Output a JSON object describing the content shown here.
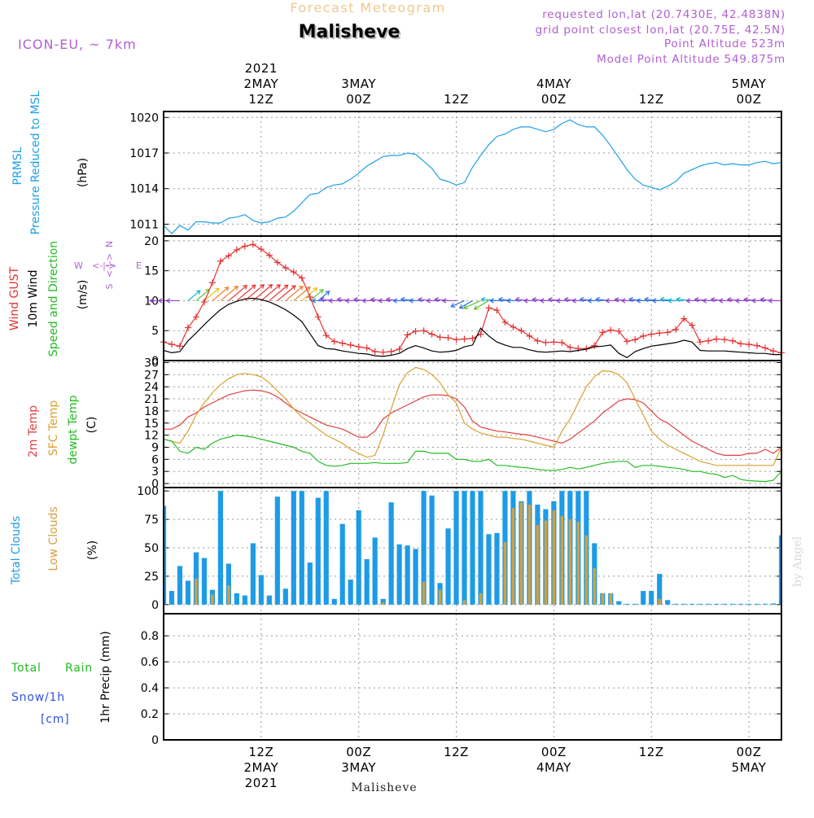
{
  "header": {
    "product_title": "Forecast Meteogram",
    "location": "Malisheve",
    "model": "ICON-EU, ~ 7km",
    "requested": "requested lon,lat (20.7430E, 42.4838N)",
    "grid_point": "grid point closest lon,lat (20.75E, 42.5N)",
    "point_altitude": "Point Altitude 523m",
    "model_altitude": "Model Point Altitude 549.875m",
    "footer_location": "Malisheve",
    "watermark": "by Angel"
  },
  "colors": {
    "pressure": "#1ea0e6",
    "gust": "#e63232",
    "wind": "#000000",
    "wind_dir_label": "#22bb22",
    "temp2m": "#e04040",
    "sfc": "#d9a030",
    "dewpt": "#22bb22",
    "total_clouds": "#1e9be6",
    "low_clouds": "#d4a040",
    "rain": "#22bb22",
    "snow": "#3050e0",
    "purple": "#b060d0"
  },
  "top_axis": [
    {
      "lines": [
        "2021",
        "2MAY",
        "12Z"
      ],
      "x_hours": 12
    },
    {
      "lines": [
        "3MAY",
        "00Z"
      ],
      "x_hours": 24
    },
    {
      "lines": [
        "12Z"
      ],
      "x_hours": 36
    },
    {
      "lines": [
        "4MAY",
        "00Z"
      ],
      "x_hours": 48
    },
    {
      "lines": [
        "12Z"
      ],
      "x_hours": 60
    },
    {
      "lines": [
        "5MAY",
        "00Z"
      ],
      "x_hours": 72
    }
  ],
  "bottom_axis": [
    {
      "lines": [
        "12Z",
        "2MAY",
        "2021"
      ],
      "x_hours": 12
    },
    {
      "lines": [
        "00Z",
        "3MAY"
      ],
      "x_hours": 24
    },
    {
      "lines": [
        "12Z"
      ],
      "x_hours": 36
    },
    {
      "lines": [
        "00Z",
        "4MAY"
      ],
      "x_hours": 48
    },
    {
      "lines": [
        "12Z"
      ],
      "x_hours": 60
    },
    {
      "lines": [
        "00Z",
        "5MAY"
      ],
      "x_hours": 72
    }
  ],
  "chart_data": [
    {
      "id": "pressure",
      "type": "line",
      "ylabels": [
        "PRMSL",
        "Pressure Reduced to MSL"
      ],
      "unit": "(hPa)",
      "yticks": [
        1011,
        1014,
        1017,
        1020
      ],
      "ylim": [
        1010,
        1020.5
      ],
      "grid": true,
      "series": [
        {
          "color_key": "pressure",
          "values": [
            1010.9,
            1010.2,
            1010.9,
            1010.5,
            1011.2,
            1011.2,
            1011.1,
            1011.1,
            1011.5,
            1011.6,
            1011.8,
            1011.3,
            1011.1,
            1011.2,
            1011.5,
            1011.6,
            1012.1,
            1012.8,
            1013.5,
            1013.6,
            1014.1,
            1014.3,
            1014.4,
            1014.8,
            1015.3,
            1015.9,
            1016.3,
            1016.7,
            1016.8,
            1016.8,
            1017.0,
            1016.9,
            1016.3,
            1015.7,
            1014.8,
            1014.6,
            1014.3,
            1014.5,
            1015.8,
            1016.8,
            1017.7,
            1018.4,
            1018.6,
            1019.0,
            1019.2,
            1019.2,
            1019.0,
            1018.8,
            1019.0,
            1019.5,
            1019.8,
            1019.4,
            1019.2,
            1019.2,
            1018.5,
            1017.6,
            1016.6,
            1015.6,
            1014.8,
            1014.3,
            1014.1,
            1013.9,
            1014.2,
            1014.6,
            1015.3,
            1015.6,
            1015.9,
            1016.1,
            1016.2,
            1016.0,
            1016.1,
            1016.0,
            1016.0,
            1016.2,
            1016.3,
            1016.1,
            1016.2
          ]
        }
      ]
    },
    {
      "id": "wind",
      "type": "line",
      "ylabels": [
        "Wind GUST",
        "10m Wind",
        "Speed and Direction"
      ],
      "unit": "(m/s)",
      "compass": {
        "n": "N",
        "s": "S",
        "e": "E",
        "w": "W",
        "mark": "<-|->"
      },
      "yticks": [
        0,
        5,
        10,
        15,
        20
      ],
      "ylim": [
        0,
        20.8
      ],
      "grid": true,
      "direction_arrow_level": 10,
      "series": [
        {
          "name": "Wind GUST",
          "color_key": "gust",
          "marker": "+",
          "values": [
            3.1,
            2.7,
            2.4,
            5.5,
            7.3,
            9.8,
            13,
            16.6,
            17.5,
            18.5,
            19.1,
            19.4,
            18.6,
            17.6,
            16.4,
            15.5,
            14.8,
            13.8,
            10.6,
            7.3,
            4.2,
            3.2,
            2.9,
            2.6,
            2.3,
            2.1,
            1.5,
            1.4,
            1.5,
            1.9,
            4.3,
            4.9,
            5.0,
            4.4,
            3.9,
            3.8,
            3.5,
            3.6,
            3.7,
            4.4,
            8.8,
            8.4,
            6.4,
            5.6,
            5.0,
            4.1,
            3.3,
            3.0,
            3.1,
            3.0,
            2.2,
            2.0,
            2.0,
            2.5,
            4.7,
            5.1,
            4.9,
            3.2,
            3.5,
            4.1,
            4.4,
            4.6,
            4.7,
            5.2,
            7.0,
            5.9,
            3.1,
            3.3,
            3.6,
            3.5,
            3.3,
            2.8,
            2.7,
            2.5,
            2.1,
            1.6,
            1.3
          ]
        },
        {
          "name": "10m Wind",
          "color_key": "wind",
          "values": [
            1.7,
            1.3,
            1.5,
            3.3,
            4.6,
            6.0,
            7.3,
            8.5,
            9.4,
            9.9,
            10.3,
            10.4,
            10.2,
            9.8,
            9.2,
            8.5,
            7.6,
            6.5,
            4.5,
            2.5,
            2.0,
            1.9,
            1.6,
            1.4,
            1.2,
            1.1,
            0.8,
            0.7,
            0.9,
            1.2,
            2.0,
            2.5,
            2.1,
            1.6,
            1.4,
            1.5,
            1.7,
            2.3,
            2.6,
            5.4,
            4.1,
            3.1,
            2.6,
            2.2,
            2.2,
            1.8,
            1.5,
            1.4,
            1.5,
            1.6,
            1.5,
            1.7,
            1.9,
            2.3,
            2.4,
            2.6,
            1.2,
            0.5,
            1.5,
            2.0,
            2.4,
            2.6,
            2.8,
            3.0,
            3.4,
            3.1,
            1.7,
            1.6,
            1.6,
            1.6,
            1.5,
            1.4,
            1.3,
            1.2,
            1.2,
            1.0,
            1.0
          ]
        }
      ]
    },
    {
      "id": "temperature",
      "type": "line",
      "ylabels": [
        "2m Temp",
        "SFC Temp",
        "dewpt Temp"
      ],
      "unit": "(C)",
      "yticks": [
        0,
        3,
        6,
        9,
        12,
        15,
        18,
        21,
        24,
        27,
        30
      ],
      "ylim": [
        -1,
        30.5
      ],
      "grid": true,
      "series": [
        {
          "name": "2m Temp",
          "color_key": "temp2m",
          "values": [
            13.5,
            13.5,
            14.5,
            16.5,
            17.5,
            19,
            20,
            21,
            22,
            22.5,
            23,
            23.2,
            23,
            22.5,
            21.5,
            20,
            18.5,
            17.5,
            16.5,
            15.5,
            14.5,
            14,
            13.5,
            12.5,
            11.5,
            11.5,
            13,
            16,
            17.5,
            18.5,
            19.5,
            20.5,
            21.5,
            22,
            22,
            21.8,
            21,
            19,
            15.5,
            14,
            13.5,
            13,
            12.8,
            12.5,
            12.2,
            12,
            11.5,
            11,
            10.5,
            10,
            11,
            12.5,
            14,
            15.5,
            17.5,
            19,
            20.5,
            21,
            20.8,
            20,
            18,
            16,
            15,
            13.5,
            12,
            10.5,
            9.5,
            8.5,
            7.5,
            7,
            7,
            7,
            7.5,
            7.5,
            8.5,
            7.5,
            9
          ]
        },
        {
          "name": "SFC Temp",
          "color_key": "sfc",
          "values": [
            11,
            10.5,
            10,
            13,
            17,
            20,
            22.5,
            24.5,
            26,
            27,
            27.3,
            27,
            26.5,
            25,
            23,
            21,
            18.5,
            16.5,
            15,
            13.5,
            12,
            11,
            10,
            8.5,
            7.5,
            6.5,
            7,
            12,
            18.5,
            24.5,
            27.5,
            28.8,
            28.3,
            27,
            25,
            22,
            20,
            15,
            13.5,
            12.5,
            12,
            11.5,
            11.5,
            11.2,
            11,
            10.5,
            10,
            9.5,
            9,
            13,
            16,
            20,
            24,
            26.5,
            28,
            27.8,
            27,
            25,
            21,
            17,
            13,
            11,
            9.5,
            8.5,
            7.5,
            6.5,
            5.5,
            5,
            4.5,
            4.5,
            4.5,
            4.5,
            4.5,
            4.5,
            4.5,
            4.5,
            9
          ]
        },
        {
          "name": "dewpt Temp",
          "color_key": "dewpt",
          "values": [
            11,
            10.5,
            8,
            7.5,
            9,
            8.5,
            10,
            11,
            11.5,
            12,
            11.8,
            11.5,
            11,
            10.5,
            10,
            9.5,
            9,
            8,
            7.5,
            5.5,
            4.5,
            4.3,
            4.5,
            5,
            5,
            5,
            5.2,
            5,
            5,
            5,
            5.2,
            8,
            8,
            7.5,
            7.5,
            7.5,
            6,
            6,
            5.5,
            5.5,
            6,
            4.5,
            4.5,
            4.2,
            4,
            3.8,
            3.5,
            3.3,
            3.2,
            3.5,
            4,
            3.6,
            4,
            4.5,
            5,
            5.3,
            5.5,
            5.5,
            4,
            4.5,
            4.5,
            4.3,
            4,
            3.8,
            3.5,
            3,
            3,
            2.5,
            2.3,
            1.5,
            2,
            1,
            0.7,
            0.6,
            0.5,
            0.8,
            3
          ]
        }
      ]
    },
    {
      "id": "clouds",
      "type": "bar",
      "ylabels": [
        "Total Clouds",
        "Low Clouds"
      ],
      "unit": "(%)",
      "yticks": [
        0,
        25,
        50,
        75,
        100
      ],
      "ylim": [
        -8,
        103
      ],
      "grid": true,
      "series": [
        {
          "name": "Total Clouds",
          "color_key": "total_clouds",
          "values": [
            87,
            12,
            34,
            21,
            46,
            41,
            13,
            100,
            36,
            10,
            8,
            54,
            26,
            8,
            95,
            14,
            100,
            100,
            37,
            94,
            100,
            5,
            71,
            22,
            83,
            40,
            59,
            5,
            90,
            53,
            52,
            49,
            100,
            96,
            19,
            67,
            100,
            100,
            100,
            100,
            62,
            63,
            100,
            100,
            91,
            100,
            88,
            84,
            91,
            100,
            100,
            100,
            100,
            54,
            10,
            10,
            3,
            0,
            0,
            12,
            12,
            27,
            4,
            0,
            0,
            0,
            0,
            0,
            0,
            0,
            0,
            0,
            0,
            0,
            0,
            1,
            61
          ]
        },
        {
          "name": "Low Clouds",
          "color_key": "low_clouds",
          "values": [
            0,
            0,
            0,
            0,
            23,
            0,
            9,
            0,
            17,
            0,
            0,
            0,
            0,
            0,
            0,
            0,
            0,
            0,
            0,
            0,
            0,
            0,
            0,
            0,
            0,
            0,
            0,
            2,
            0,
            0,
            0,
            0,
            20,
            0,
            13,
            0,
            0,
            4,
            0,
            10,
            0,
            0,
            55,
            85,
            90,
            88,
            70,
            74,
            83,
            78,
            75,
            73,
            61,
            32,
            10,
            10,
            0,
            0,
            0,
            0,
            0,
            5,
            0,
            0,
            0,
            0,
            0,
            0,
            0,
            0,
            0,
            0,
            0,
            0,
            0,
            0,
            0
          ]
        }
      ]
    },
    {
      "id": "precip",
      "type": "bar",
      "ylabels": [
        "Total",
        "Rain",
        "Snow/1h",
        "[cm]"
      ],
      "unit": "1hr Precip (mm)",
      "yticks": [
        0,
        0.2,
        0.4,
        0.6,
        0.8
      ],
      "ylim": [
        0,
        0.97
      ],
      "grid": true,
      "series": [
        {
          "name": "Total Rain",
          "color_key": "rain",
          "values": [
            0,
            0,
            0,
            0,
            0,
            0,
            0,
            0,
            0,
            0,
            0,
            0,
            0,
            0,
            0,
            0,
            0,
            0,
            0,
            0,
            0,
            0,
            0,
            0,
            0,
            0,
            0,
            0,
            0,
            0,
            0,
            0,
            0,
            0,
            0,
            0,
            0,
            0,
            0,
            0,
            0,
            0,
            0,
            0,
            0,
            0,
            0,
            0,
            0,
            0,
            0,
            0,
            0,
            0,
            0,
            0,
            0,
            0,
            0,
            0,
            0,
            0,
            0,
            0,
            0,
            0,
            0,
            0,
            0,
            0,
            0,
            0,
            0,
            0,
            0,
            0,
            0
          ]
        }
      ]
    }
  ]
}
